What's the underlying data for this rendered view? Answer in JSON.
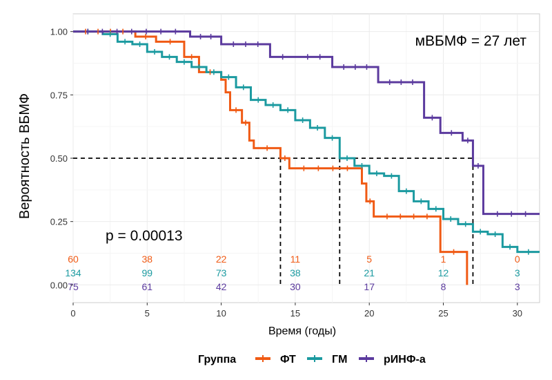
{
  "chart_data": {
    "type": "line",
    "ylabel": "Вероятность ВБМФ",
    "xlabel": "Время (годы)",
    "annotation_median": "мВБМФ = 27 лет",
    "annotation_p": "p = 0.00013",
    "xlim": [
      0,
      31.5
    ],
    "ylim": [
      -0.07,
      1.07
    ],
    "x_ticks": [
      0,
      5,
      10,
      15,
      20,
      25,
      30
    ],
    "y_ticks": [
      0.0,
      0.25,
      0.5,
      0.75,
      1.0
    ],
    "y_tick_labels": [
      "0.00",
      "0.25",
      "0.50",
      "0.75",
      "1.00"
    ],
    "grid": true,
    "legend": {
      "title": "Группа",
      "placement": "bottom"
    },
    "series": [
      {
        "name": "ФТ",
        "color": "#F05A14",
        "x": [
          0,
          4.2,
          4.2,
          5.6,
          5.6,
          7.5,
          7.5,
          8.5,
          8.5,
          10.0,
          10.0,
          10.3,
          10.3,
          10.6,
          10.6,
          11.4,
          11.4,
          11.9,
          11.9,
          12.2,
          12.2,
          14.0,
          14.0,
          14.6,
          14.6,
          19.5,
          19.5,
          19.8,
          19.8,
          20.3,
          20.3,
          24.8,
          24.8,
          26.6,
          26.6
        ],
        "y": [
          1.0,
          1.0,
          0.98,
          0.98,
          0.96,
          0.96,
          0.9,
          0.9,
          0.84,
          0.84,
          0.81,
          0.81,
          0.76,
          0.76,
          0.69,
          0.69,
          0.64,
          0.64,
          0.57,
          0.57,
          0.54,
          0.54,
          0.5,
          0.5,
          0.46,
          0.46,
          0.4,
          0.4,
          0.33,
          0.33,
          0.27,
          0.27,
          0.13,
          0.13,
          0.0
        ]
      },
      {
        "name": "ГМ",
        "color": "#1B9AA0",
        "x": [
          0,
          2,
          3,
          4,
          5,
          6,
          7,
          8,
          9,
          10,
          11,
          12,
          13,
          14,
          15,
          16,
          17,
          18,
          19,
          20,
          21,
          22,
          23,
          24,
          25,
          26,
          27,
          28,
          29,
          30,
          31.5
        ],
        "y": [
          1.0,
          0.99,
          0.96,
          0.95,
          0.92,
          0.9,
          0.88,
          0.86,
          0.84,
          0.82,
          0.78,
          0.73,
          0.71,
          0.69,
          0.65,
          0.62,
          0.58,
          0.5,
          0.47,
          0.44,
          0.43,
          0.37,
          0.33,
          0.3,
          0.26,
          0.24,
          0.21,
          0.2,
          0.15,
          0.13,
          0.13
        ]
      },
      {
        "name": "рИНФ-а",
        "color": "#5B3A9E",
        "x": [
          0,
          7.9,
          7.9,
          10.0,
          10.0,
          13.3,
          13.3,
          15.0,
          15.0,
          17.5,
          17.5,
          20.6,
          20.6,
          23.7,
          23.7,
          24.8,
          24.8,
          26.3,
          26.3,
          27.0,
          27.0,
          27.7,
          27.7,
          31.5
        ],
        "y": [
          1.0,
          1.0,
          0.98,
          0.98,
          0.95,
          0.95,
          0.9,
          0.9,
          0.9,
          0.9,
          0.86,
          0.86,
          0.8,
          0.8,
          0.66,
          0.66,
          0.6,
          0.6,
          0.57,
          0.57,
          0.47,
          0.47,
          0.28,
          0.28
        ]
      }
    ],
    "median_lines": [
      {
        "x": 14.0,
        "y": 0.5
      },
      {
        "x": 18.0,
        "y": 0.5
      },
      {
        "x": 27.0,
        "y": 0.5
      }
    ],
    "risk_table": {
      "x": [
        0,
        5,
        10,
        15,
        20,
        25,
        30
      ],
      "rows": [
        {
          "name": "ФТ",
          "color": "#F05A14",
          "values": [
            "60",
            "38",
            "22",
            "11",
            "5",
            "1",
            "0"
          ]
        },
        {
          "name": "ГМ",
          "color": "#1B9AA0",
          "values": [
            "134",
            "99",
            "73",
            "38",
            "21",
            "12",
            "3"
          ]
        },
        {
          "name": "рИНФ-а",
          "color": "#5B3A9E",
          "values": [
            "75",
            "61",
            "42",
            "30",
            "17",
            "8",
            "3"
          ]
        }
      ]
    }
  }
}
